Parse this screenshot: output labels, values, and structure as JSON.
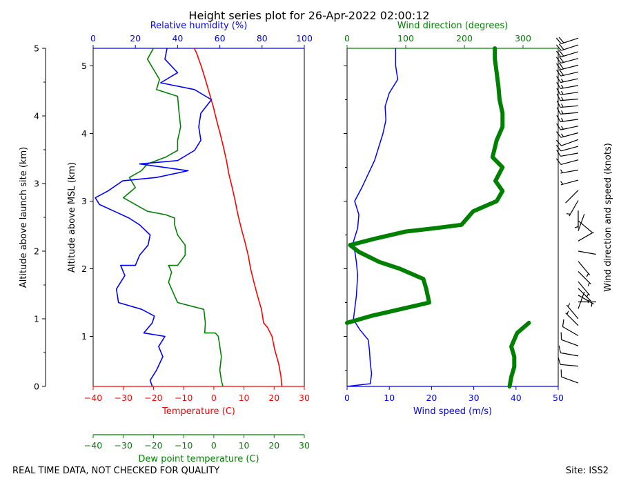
{
  "title": "Height series plot for 26-Apr-2022 02:00:12",
  "footer_left": "REAL TIME DATA, NOT CHECKED FOR QUALITY",
  "footer_right": "Site: ISS2",
  "colors": {
    "temperature": "#ff0000",
    "dewpoint": "#008000",
    "rh": "#0000ff",
    "wind_speed": "#0000ff",
    "wind_dir": "#008000",
    "barbs": "#000000"
  },
  "chart_data": [
    {
      "type": "line",
      "panel": "thermodynamic",
      "ylabel_left": "Altitude above launch site (km)",
      "ylabel_inner": "Altitude above MSL (km)",
      "ylim_launch": [
        0,
        5
      ],
      "ylim_msl": [
        0.26,
        5.26
      ],
      "yticks_launch": [
        0,
        1,
        2,
        3,
        4,
        5
      ],
      "yticks_msl": [
        1,
        2,
        3,
        4,
        5
      ],
      "axes": {
        "temperature": {
          "label": "Temperature (C)",
          "lim": [
            -40,
            30
          ],
          "ticks": [
            -40,
            -30,
            -20,
            -10,
            0,
            10,
            20,
            30
          ]
        },
        "dewpoint": {
          "label": "Dew point temperature (C)",
          "lim": [
            -40,
            30
          ],
          "ticks": [
            -40,
            -30,
            -20,
            -10,
            0,
            10,
            20,
            30
          ]
        },
        "rh": {
          "label": "Relative humidity (%)",
          "lim": [
            0,
            100
          ],
          "ticks": [
            0,
            20,
            40,
            60,
            80,
            100
          ]
        }
      },
      "series": [
        {
          "key": "temperature",
          "axis": "temperature",
          "points": [
            [
              22.5,
              0.26
            ],
            [
              22.3,
              0.4
            ],
            [
              21.5,
              0.6
            ],
            [
              20.2,
              0.8
            ],
            [
              19.3,
              1.0
            ],
            [
              17.8,
              1.13
            ],
            [
              16.5,
              1.2
            ],
            [
              15.8,
              1.4
            ],
            [
              14.5,
              1.6
            ],
            [
              13.3,
              1.8
            ],
            [
              12.2,
              2.0
            ],
            [
              11.4,
              2.2
            ],
            [
              10.3,
              2.4
            ],
            [
              9.1,
              2.6
            ],
            [
              8.0,
              2.8
            ],
            [
              7.1,
              3.0
            ],
            [
              6.1,
              3.2
            ],
            [
              5.0,
              3.4
            ],
            [
              4.2,
              3.6
            ],
            [
              3.2,
              3.8
            ],
            [
              2.1,
              4.0
            ],
            [
              0.9,
              4.2
            ],
            [
              -0.2,
              4.4
            ],
            [
              -1.5,
              4.6
            ],
            [
              -2.8,
              4.8
            ],
            [
              -4.2,
              5.0
            ],
            [
              -5.8,
              5.2
            ],
            [
              -6.5,
              5.26
            ]
          ]
        },
        {
          "key": "dewpoint",
          "axis": "dewpoint",
          "points": [
            [
              3.0,
              0.26
            ],
            [
              2.5,
              0.35
            ],
            [
              2.0,
              0.5
            ],
            [
              2.5,
              0.7
            ],
            [
              2.0,
              0.85
            ],
            [
              1.5,
              1.0
            ],
            [
              0.5,
              1.05
            ],
            [
              -3.0,
              1.05
            ],
            [
              -2.8,
              1.2
            ],
            [
              -3.3,
              1.4
            ],
            [
              -12.0,
              1.5
            ],
            [
              -13.5,
              1.65
            ],
            [
              -15.0,
              1.8
            ],
            [
              -14.0,
              1.95
            ],
            [
              -15.0,
              2.05
            ],
            [
              -12.0,
              2.05
            ],
            [
              -9.5,
              2.2
            ],
            [
              -9.5,
              2.35
            ],
            [
              -12.0,
              2.5
            ],
            [
              -13.0,
              2.65
            ],
            [
              -13.0,
              2.75
            ],
            [
              -16.0,
              2.8
            ],
            [
              -22.0,
              2.85
            ],
            [
              -26.0,
              2.95
            ],
            [
              -30.0,
              3.05
            ],
            [
              -26.0,
              3.2
            ],
            [
              -28.0,
              3.35
            ],
            [
              -24.0,
              3.45
            ],
            [
              -22.0,
              3.55
            ],
            [
              -16.0,
              3.65
            ],
            [
              -12.0,
              3.75
            ],
            [
              -12.0,
              3.9
            ],
            [
              -11.0,
              4.1
            ],
            [
              -11.5,
              4.3
            ],
            [
              -12.0,
              4.55
            ],
            [
              -19.0,
              4.65
            ],
            [
              -18.0,
              4.8
            ],
            [
              -20.0,
              4.95
            ],
            [
              -22.0,
              5.1
            ],
            [
              -20.0,
              5.26
            ]
          ]
        },
        {
          "key": "rh",
          "axis": "rh",
          "points": [
            [
              28,
              0.26
            ],
            [
              27,
              0.35
            ],
            [
              30,
              0.5
            ],
            [
              33,
              0.7
            ],
            [
              31,
              0.85
            ],
            [
              34,
              1.0
            ],
            [
              24,
              1.05
            ],
            [
              28,
              1.2
            ],
            [
              29,
              1.3
            ],
            [
              23,
              1.4
            ],
            [
              12,
              1.5
            ],
            [
              11,
              1.7
            ],
            [
              15,
              1.9
            ],
            [
              13,
              2.05
            ],
            [
              20,
              2.05
            ],
            [
              22,
              2.2
            ],
            [
              26,
              2.35
            ],
            [
              27,
              2.5
            ],
            [
              22,
              2.65
            ],
            [
              17,
              2.75
            ],
            [
              10,
              2.85
            ],
            [
              3,
              2.95
            ],
            [
              1,
              3.05
            ],
            [
              7,
              3.15
            ],
            [
              14,
              3.3
            ],
            [
              30,
              3.35
            ],
            [
              45,
              3.45
            ],
            [
              22,
              3.55
            ],
            [
              40,
              3.6
            ],
            [
              48,
              3.75
            ],
            [
              51,
              3.9
            ],
            [
              50,
              4.1
            ],
            [
              51,
              4.3
            ],
            [
              56,
              4.5
            ],
            [
              48,
              4.65
            ],
            [
              32,
              4.75
            ],
            [
              40,
              4.9
            ],
            [
              34,
              5.1
            ],
            [
              35,
              5.26
            ]
          ]
        }
      ]
    },
    {
      "type": "line",
      "panel": "wind",
      "xlabel": "Wind speed (m/s)",
      "x2label": "Wind direction (degrees)",
      "xlim": [
        0,
        50
      ],
      "xticks": [
        0,
        10,
        20,
        30,
        40,
        50
      ],
      "x2lim": [
        0,
        360
      ],
      "x2ticks": [
        0,
        100,
        200,
        300
      ],
      "series": [
        {
          "key": "wind_speed",
          "name": "Wind speed",
          "points": [
            [
              0,
              0.26
            ],
            [
              5.5,
              0.3
            ],
            [
              5.8,
              0.45
            ],
            [
              5.5,
              0.6
            ],
            [
              5.3,
              0.8
            ],
            [
              5.0,
              0.95
            ],
            [
              3.0,
              1.1
            ],
            [
              1.5,
              1.25
            ],
            [
              1.8,
              1.4
            ],
            [
              2.2,
              1.6
            ],
            [
              2.5,
              1.9
            ],
            [
              2.2,
              2.1
            ],
            [
              1.5,
              2.4
            ],
            [
              2.5,
              2.6
            ],
            [
              2.8,
              2.8
            ],
            [
              1.8,
              3.0
            ],
            [
              3.5,
              3.2
            ],
            [
              5.0,
              3.4
            ],
            [
              6.5,
              3.6
            ],
            [
              7.5,
              3.8
            ],
            [
              8.5,
              4.0
            ],
            [
              9.2,
              4.2
            ],
            [
              9.0,
              4.4
            ],
            [
              10.0,
              4.6
            ],
            [
              12.0,
              4.8
            ],
            [
              11.5,
              5.0
            ],
            [
              11.5,
              5.26
            ]
          ]
        },
        {
          "key": "wind_dir",
          "name": "Wind direction",
          "points": [
            [
              277,
              0.26
            ],
            [
              280,
              0.4
            ],
            [
              285,
              0.55
            ],
            [
              285,
              0.7
            ],
            [
              280,
              0.85
            ],
            [
              290,
              1.05
            ],
            [
              310,
              1.2
            ],
            [
              0,
              1.2
            ],
            [
              40,
              1.3
            ],
            [
              90,
              1.4
            ],
            [
              140,
              1.5
            ],
            [
              135,
              1.7
            ],
            [
              130,
              1.85
            ],
            [
              90,
              2.0
            ],
            [
              55,
              2.1
            ],
            [
              20,
              2.25
            ],
            [
              5,
              2.35
            ],
            [
              50,
              2.45
            ],
            [
              100,
              2.55
            ],
            [
              150,
              2.6
            ],
            [
              195,
              2.65
            ],
            [
              205,
              2.75
            ],
            [
              215,
              2.85
            ],
            [
              255,
              3.0
            ],
            [
              265,
              3.15
            ],
            [
              253,
              3.3
            ],
            [
              265,
              3.5
            ],
            [
              248,
              3.65
            ],
            [
              255,
              3.9
            ],
            [
              265,
              4.1
            ],
            [
              265,
              4.3
            ],
            [
              260,
              4.5
            ],
            [
              258,
              4.7
            ],
            [
              255,
              4.9
            ],
            [
              252,
              5.1
            ],
            [
              252,
              5.26
            ]
          ]
        }
      ]
    }
  ],
  "barbs_label": "Wind direction and speed (knots)",
  "barbs": [
    {
      "alt": 0.05,
      "dir": 290,
      "kts": 12
    },
    {
      "alt": 0.3,
      "dir": 275,
      "kts": 11
    },
    {
      "alt": 0.45,
      "dir": 280,
      "kts": 12
    },
    {
      "alt": 0.6,
      "dir": 290,
      "kts": 11
    },
    {
      "alt": 0.75,
      "dir": 300,
      "kts": 10
    },
    {
      "alt": 0.9,
      "dir": 315,
      "kts": 9
    },
    {
      "alt": 1.0,
      "dir": 320,
      "kts": 6
    },
    {
      "alt": 1.15,
      "dir": 20,
      "kts": 3
    },
    {
      "alt": 1.25,
      "dir": 90,
      "kts": 4
    },
    {
      "alt": 1.35,
      "dir": 120,
      "kts": 5
    },
    {
      "alt": 1.45,
      "dir": 135,
      "kts": 5
    },
    {
      "alt": 1.55,
      "dir": 140,
      "kts": 5
    },
    {
      "alt": 1.7,
      "dir": 135,
      "kts": 5
    },
    {
      "alt": 1.85,
      "dir": 140,
      "kts": 5
    },
    {
      "alt": 2.0,
      "dir": 100,
      "kts": 4
    },
    {
      "alt": 2.15,
      "dir": 60,
      "kts": 4
    },
    {
      "alt": 2.3,
      "dir": 20,
      "kts": 3
    },
    {
      "alt": 2.45,
      "dir": 130,
      "kts": 4
    },
    {
      "alt": 2.6,
      "dir": 180,
      "kts": 5
    },
    {
      "alt": 2.75,
      "dir": 210,
      "kts": 5
    },
    {
      "alt": 2.9,
      "dir": 225,
      "kts": 4
    },
    {
      "alt": 3.05,
      "dir": 255,
      "kts": 5
    },
    {
      "alt": 3.2,
      "dir": 260,
      "kts": 7
    },
    {
      "alt": 3.35,
      "dir": 255,
      "kts": 10
    },
    {
      "alt": 3.45,
      "dir": 260,
      "kts": 12
    },
    {
      "alt": 3.55,
      "dir": 255,
      "kts": 13
    },
    {
      "alt": 3.65,
      "dir": 250,
      "kts": 14
    },
    {
      "alt": 3.75,
      "dir": 255,
      "kts": 15
    },
    {
      "alt": 3.85,
      "dir": 258,
      "kts": 16
    },
    {
      "alt": 3.95,
      "dir": 262,
      "kts": 16
    },
    {
      "alt": 4.05,
      "dir": 265,
      "kts": 17
    },
    {
      "alt": 4.15,
      "dir": 265,
      "kts": 18
    },
    {
      "alt": 4.25,
      "dir": 265,
      "kts": 18
    },
    {
      "alt": 4.35,
      "dir": 262,
      "kts": 17
    },
    {
      "alt": 4.45,
      "dir": 260,
      "kts": 18
    },
    {
      "alt": 4.55,
      "dir": 258,
      "kts": 19
    },
    {
      "alt": 4.65,
      "dir": 257,
      "kts": 20
    },
    {
      "alt": 4.75,
      "dir": 256,
      "kts": 22
    },
    {
      "alt": 4.85,
      "dir": 255,
      "kts": 23
    },
    {
      "alt": 4.95,
      "dir": 253,
      "kts": 22
    },
    {
      "alt": 5.05,
      "dir": 252,
      "kts": 22
    },
    {
      "alt": 5.15,
      "dir": 252,
      "kts": 22
    }
  ]
}
